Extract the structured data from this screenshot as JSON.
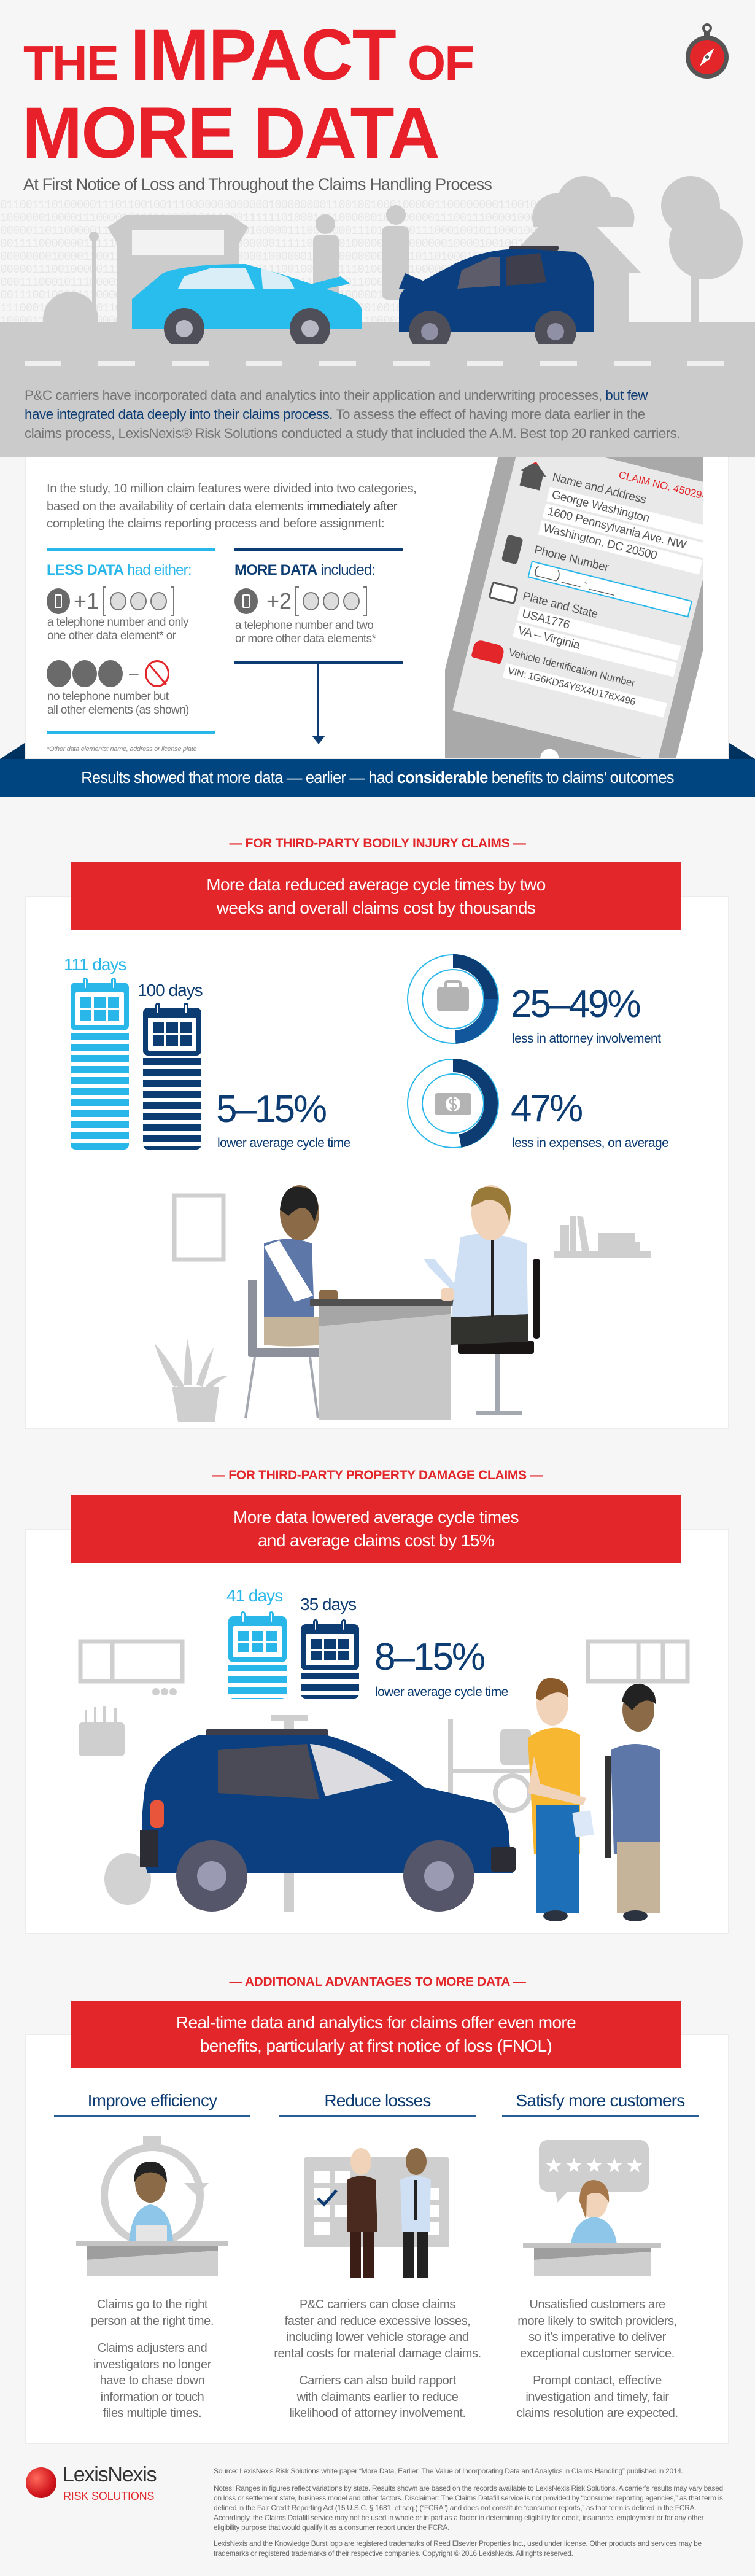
{
  "header": {
    "title_line1_a": "THE",
    "title_line1_b": "IMPACT",
    "title_line1_c": "OF",
    "title_line2": "MORE DATA",
    "subtitle": "At First Notice of Loss and Throughout the Claims Handling Process",
    "binary_rows": [
      "0110011101000001110110010011100000000000001000000001100100100010000011000000001100100000110",
      "1000000100001110000101111100001011110011111101000111100000010110000011100111000010000111000",
      "0000011011000001110000000111010010010101000001110000000111010000011100010010110001000000000",
      "0011110000000111110010010111000001111000000111110011101000000010000000100001001001101110010",
      "0000000010000110011110001000000000000000010000001100000000001100101101000100010011001110010",
      "0000011100100000111000101010000011110000011100100001111101000101100000111100010000111010010",
      "0001110001011100001110000001100000000111101000111100000110000110001001100000011000010000001",
      "0011100100001110000101000011110000111001001111101001110000010110000111000100000001101000011",
      "1110001001010100110100001110000011100011110000111001110000100101000110010000100100010000101",
      "1000011110111010000011100011100001001111010000011010011111000010101110010000001100100101101",
      "0000110011101001110000100111100000110000111100010001100000011100000011100100001000111110001"
    ],
    "compass_icon": "compass-icon"
  },
  "intro": {
    "line1_plain": "P&C carriers have incorporated data and analytics into their application and underwriting processes,",
    "line1_bold": " but few",
    "line2_bold": "have integrated data deeply into their claims process.",
    "line2_plain": " To assess the effect of having more data earlier in the",
    "line3": "claims process, LexisNexis® Risk Solutions conducted a study that included the A.M. Best top 20 ranked carriers."
  },
  "study": {
    "line1": "In the study, 10 million claim features were divided into two categories,",
    "line2_plain": "based on the availability of certain data elements ",
    "line2_emph": "immediately after",
    "line3": "completing the claims reporting process and before assignment:",
    "less": {
      "label_bold": "LESS DATA",
      "label_rest": " had either:",
      "plus_label": "+1",
      "desc1_line1": "a telephone number and only",
      "desc1_line2": "one other data element* or",
      "minus_label": "–",
      "desc2_line1": "no telephone number but",
      "desc2_line2": "all other elements (as shown)"
    },
    "more": {
      "label_bold": "MORE DATA",
      "label_rest": " included:",
      "plus_label": "+2",
      "desc_line1": "a telephone number and two",
      "desc_line2": "or more other data elements*"
    },
    "footnote": "*Other data elements: name, address or license plate",
    "tablet": {
      "claim_no": "CLAIM NO. 4502943",
      "name_label": "Name and Address",
      "name": "George Washington",
      "address1": "1600 Pennsylvania Ave. NW",
      "address2": "Washington, DC 20500",
      "phone_label": "Phone Number",
      "phone_placeholder": "(___) ___ - ____",
      "plate_label": "Plate and State",
      "plate": "USA1776",
      "state": "VA – Virginia",
      "vin_label": "Vehicle Identification Number",
      "vin": "VIN: 1G6KD54Y6X4U176X496"
    }
  },
  "results_banner": {
    "text_a": "Results showed that more data — earlier — had ",
    "text_bold": "considerable",
    "text_b": " benefits to claims’ outcomes"
  },
  "bodily_injury": {
    "section_label": "— FOR THIRD-PARTY BODILY INJURY CLAIMS —",
    "headline_line1": "More data reduced average cycle times by two",
    "headline_line2": "weeks and overall claims cost by thousands",
    "less_data_days": "111 days",
    "more_data_days": "100 days",
    "cycle_stat": "5–15%",
    "cycle_label": "lower average cycle time",
    "attorney_stat": "25–49%",
    "attorney_label": "less in attorney involvement",
    "attorney_ring": {
      "low": 0.25,
      "high": 0.49
    },
    "expense_stat": "47%",
    "expense_label": "less in expenses, on average",
    "expense_ring": 0.47
  },
  "property_damage": {
    "section_label": "— FOR THIRD-PARTY PROPERTY DAMAGE CLAIMS —",
    "headline_line1": "More data lowered average cycle times",
    "headline_line2": "and average claims cost by 15%",
    "less_data_days": "41 days",
    "more_data_days": "35 days",
    "cycle_stat": "8–15%",
    "cycle_label": "lower average cycle time"
  },
  "advantages": {
    "section_label": "— ADDITIONAL ADVANTAGES TO MORE DATA —",
    "headline_line1": "Real-time data and analytics for claims offer even more",
    "headline_line2": "benefits, particularly at first notice of loss (FNOL)",
    "columns": [
      {
        "title": "Improve efficiency",
        "p1": [
          "Claims go to the right",
          "person at the right time."
        ],
        "p2": [
          "Claims adjusters and",
          "investigators no longer",
          "have to chase down",
          "information or touch",
          "files multiple times."
        ]
      },
      {
        "title": "Reduce losses",
        "p1": [
          "P&C carriers can close claims",
          "faster and reduce excessive losses,",
          "including lower vehicle storage and",
          "rental costs for material damage claims."
        ],
        "p2": [
          "Carriers can also build rapport",
          "with claimants earlier to reduce",
          "likelihood of attorney involvement."
        ]
      },
      {
        "title": "Satisfy more customers",
        "p1": [
          "Unsatisfied customers are",
          "more likely to switch providers,",
          "so it’s imperative to deliver",
          "exceptional customer service."
        ],
        "p2": [
          "Prompt contact, effective",
          "investigation and timely, fair",
          "claims resolution are expected."
        ]
      }
    ],
    "rating_stars": 5
  },
  "footer": {
    "logo_name": "LexisNexis",
    "logo_sub": "RISK SOLUTIONS",
    "source": "Source: LexisNexis Risk Solutions white paper “More Data, Earlier: The Value of Incorporating Data and Analytics in Claims Handling” published in 2014.",
    "notes": "Notes: Ranges in figures reflect variations by state. Results shown are based on the records available to LexisNexis Risk Solutions. A carrier’s results may vary based on loss or settlement state, business model and other factors. Disclaimer: The Claims Datafill service is not provided by “consumer reporting agencies,” as that term is defined in the Fair Credit Reporting Act (15 U.S.C. § 1681, et seq.) (“FCRA”) and does not constitute “consumer reports,” as that term is defined in the FCRA. Accordingly, the Claims Datafill service may not be used in whole or in part as a factor in determining eligibility for credit, insurance, employment or for any other eligibility purpose that would qualify it as a consumer report under the FCRA.",
    "trademark": "LexisNexis and the Knowledge Burst logo are registered trademarks of Reed Elsevier Properties Inc., used under license. Other products and services may be trademarks or registered trademarks of their respective companies. Copyright © 2016 LexisNexis. All rights reserved."
  },
  "colors": {
    "red": "#e2262a",
    "navy": "#0d3c73",
    "banner_blue": "#00457f",
    "light_blue": "#29b7ea",
    "gray": "#c9c9c9"
  }
}
